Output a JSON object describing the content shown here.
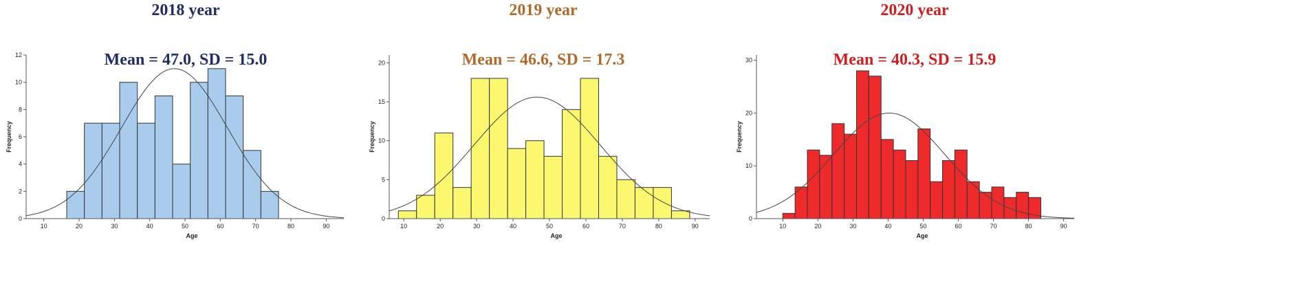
{
  "colors": {
    "title_2018": "#1f2f66",
    "title_2019": "#b06a2b",
    "title_2020": "#cc1f1f",
    "bar_2018": "#a9cbec",
    "bar_2019": "#fbf76f",
    "bar_2020": "#ee2a2a",
    "bar_stroke": "#333333",
    "curve": "#444444"
  },
  "panels": [
    {
      "year_title": "2018 year",
      "stats_title": "Mean = 47.0, SD  = 15.0"
    },
    {
      "year_title": "2019 year",
      "stats_title": "Mean = 46.6, SD  = 17.3"
    },
    {
      "year_title": "2020 year",
      "stats_title": "Mean = 40.3, SD  = 15.9"
    }
  ],
  "chart_data": [
    {
      "type": "bar",
      "subtype": "histogram",
      "title": "Mean = 47.0, SD  = 15.0",
      "xlabel": "Age",
      "ylabel": "Frequency",
      "xlim": [
        5,
        95
      ],
      "ylim": [
        0,
        12
      ],
      "xticks": [
        10,
        20,
        30,
        40,
        50,
        60,
        70,
        80,
        90
      ],
      "yticks": [
        0,
        2,
        4,
        6,
        8,
        10,
        12
      ],
      "bins": [
        {
          "start": 16.5,
          "end": 21.5,
          "value": 2
        },
        {
          "start": 21.5,
          "end": 26.5,
          "value": 7
        },
        {
          "start": 26.5,
          "end": 31.5,
          "value": 7
        },
        {
          "start": 31.5,
          "end": 36.5,
          "value": 10
        },
        {
          "start": 36.5,
          "end": 41.5,
          "value": 7
        },
        {
          "start": 41.5,
          "end": 46.5,
          "value": 9
        },
        {
          "start": 46.5,
          "end": 51.5,
          "value": 4
        },
        {
          "start": 51.5,
          "end": 56.5,
          "value": 10
        },
        {
          "start": 56.5,
          "end": 61.5,
          "value": 11
        },
        {
          "start": 61.5,
          "end": 66.5,
          "value": 9
        },
        {
          "start": 66.5,
          "end": 71.5,
          "value": 5
        },
        {
          "start": 71.5,
          "end": 76.5,
          "value": 2
        }
      ],
      "normal_curve": {
        "mean": 47.0,
        "sd": 15.0,
        "peak": 11.0
      },
      "grid": false,
      "legend": "none"
    },
    {
      "type": "bar",
      "subtype": "histogram",
      "title": "Mean = 46.6, SD  = 17.3",
      "xlabel": "Age",
      "ylabel": "Frequency",
      "xlim": [
        6,
        94
      ],
      "ylim": [
        0,
        21
      ],
      "xticks": [
        10,
        20,
        30,
        40,
        50,
        60,
        70,
        80,
        90
      ],
      "yticks": [
        0,
        5,
        10,
        15,
        20
      ],
      "bins": [
        {
          "start": 8.5,
          "end": 13.5,
          "value": 1
        },
        {
          "start": 13.5,
          "end": 18.5,
          "value": 3
        },
        {
          "start": 18.5,
          "end": 23.5,
          "value": 11
        },
        {
          "start": 23.5,
          "end": 28.5,
          "value": 4
        },
        {
          "start": 28.5,
          "end": 33.5,
          "value": 18
        },
        {
          "start": 33.5,
          "end": 38.5,
          "value": 18
        },
        {
          "start": 38.5,
          "end": 43.5,
          "value": 9
        },
        {
          "start": 43.5,
          "end": 48.5,
          "value": 10
        },
        {
          "start": 48.5,
          "end": 53.5,
          "value": 8
        },
        {
          "start": 53.5,
          "end": 58.5,
          "value": 14
        },
        {
          "start": 58.5,
          "end": 63.5,
          "value": 18
        },
        {
          "start": 63.5,
          "end": 68.5,
          "value": 8
        },
        {
          "start": 68.5,
          "end": 73.5,
          "value": 5
        },
        {
          "start": 73.5,
          "end": 78.5,
          "value": 4
        },
        {
          "start": 78.5,
          "end": 83.5,
          "value": 4
        },
        {
          "start": 83.5,
          "end": 88.5,
          "value": 1
        }
      ],
      "normal_curve": {
        "mean": 46.6,
        "sd": 17.3,
        "peak": 15.6
      },
      "grid": false,
      "legend": "none"
    },
    {
      "type": "bar",
      "subtype": "histogram",
      "title": "Mean = 40.3, SD  = 15.9",
      "xlabel": "Age",
      "ylabel": "Frequency",
      "xlim": [
        2.5,
        93
      ],
      "ylim": [
        0,
        31
      ],
      "xticks": [
        10,
        20,
        30,
        40,
        50,
        60,
        70,
        80,
        90
      ],
      "yticks": [
        0,
        10,
        20,
        30
      ],
      "bins": [
        {
          "start": 10,
          "end": 13.5,
          "value": 1
        },
        {
          "start": 13.5,
          "end": 17,
          "value": 6
        },
        {
          "start": 17,
          "end": 20.5,
          "value": 13
        },
        {
          "start": 20.5,
          "end": 24,
          "value": 12
        },
        {
          "start": 24,
          "end": 27.5,
          "value": 18
        },
        {
          "start": 27.5,
          "end": 31,
          "value": 16
        },
        {
          "start": 31,
          "end": 34.5,
          "value": 28
        },
        {
          "start": 34.5,
          "end": 38,
          "value": 27
        },
        {
          "start": 38,
          "end": 41.5,
          "value": 15
        },
        {
          "start": 41.5,
          "end": 45,
          "value": 13
        },
        {
          "start": 45,
          "end": 48.5,
          "value": 11
        },
        {
          "start": 48.5,
          "end": 52,
          "value": 17
        },
        {
          "start": 52,
          "end": 55.5,
          "value": 7
        },
        {
          "start": 55.5,
          "end": 59,
          "value": 11
        },
        {
          "start": 59,
          "end": 62.5,
          "value": 13
        },
        {
          "start": 62.5,
          "end": 66,
          "value": 7
        },
        {
          "start": 66,
          "end": 69.5,
          "value": 5
        },
        {
          "start": 69.5,
          "end": 73,
          "value": 6
        },
        {
          "start": 73,
          "end": 76.5,
          "value": 4
        },
        {
          "start": 76.5,
          "end": 80,
          "value": 5
        },
        {
          "start": 80,
          "end": 83.5,
          "value": 4
        }
      ],
      "normal_curve": {
        "mean": 40.3,
        "sd": 15.9,
        "peak": 20.0
      },
      "grid": false,
      "legend": "none"
    }
  ]
}
